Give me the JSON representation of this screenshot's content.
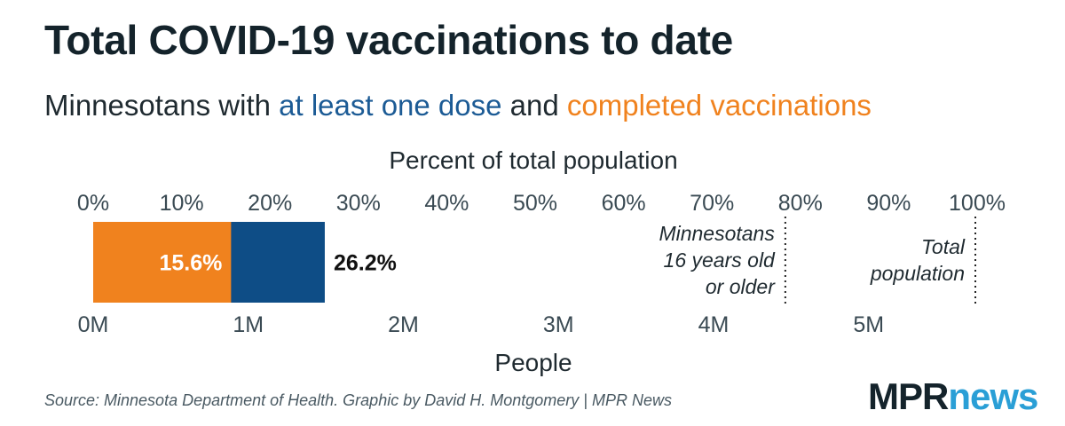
{
  "title": "Total COVID-19 vaccinations to date",
  "subtitle": {
    "prefix": "Minnesotans with ",
    "dose_label": "at least one dose",
    "middle": " and ",
    "complete_label": "completed vaccinations"
  },
  "colors": {
    "at_least_one_dose": "#0e4d86",
    "completed": "#f0821e",
    "text": "#1f2a30",
    "logo_mpr": "#14232b",
    "logo_news": "#2a9fd6"
  },
  "chart_data": {
    "type": "bar",
    "orientation": "horizontal",
    "top_axis": {
      "label": "Percent of total population",
      "range": [
        0,
        100
      ],
      "ticks": [
        "0%",
        "10%",
        "20%",
        "30%",
        "40%",
        "50%",
        "60%",
        "70%",
        "80%",
        "90%",
        "100%"
      ]
    },
    "bottom_axis": {
      "label": "People",
      "range_millions": [
        0,
        5.7
      ],
      "ticks": [
        "0M",
        "1M",
        "2M",
        "3M",
        "4M",
        "5M"
      ],
      "tick_values_millions": [
        0,
        1,
        2,
        3,
        4,
        5
      ]
    },
    "series": [
      {
        "name": "at least one dose",
        "value_percent": 26.2,
        "label": "26.2%"
      },
      {
        "name": "completed vaccinations",
        "value_percent": 15.6,
        "label": "15.6%"
      }
    ],
    "reference_lines": [
      {
        "value_percent": 78.3,
        "label_lines": [
          "Minnesotans",
          "16 years old",
          "or older"
        ]
      },
      {
        "value_percent": 100,
        "label_lines": [
          "Total",
          "population"
        ]
      }
    ],
    "grid": false,
    "legend": "inline in subtitle"
  },
  "source": "Source: Minnesota Department of Health. Graphic by David H. Montgomery | MPR News",
  "logo": {
    "mpr": "MPR",
    "news": "news"
  }
}
